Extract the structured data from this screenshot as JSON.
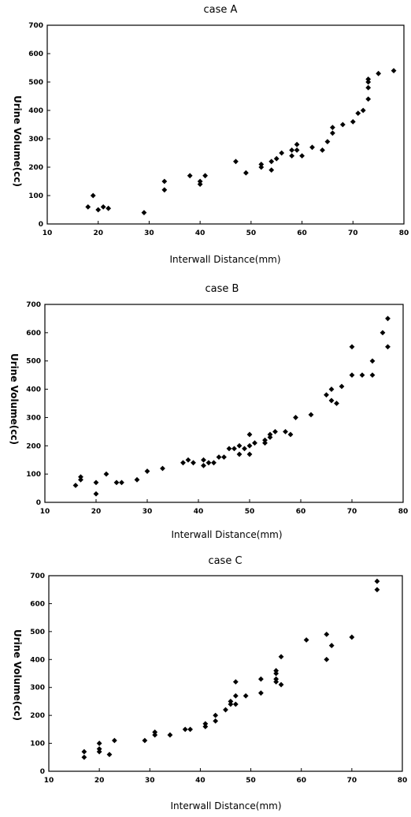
{
  "chart_data": [
    {
      "type": "scatter",
      "title": "case A",
      "xlabel": "Interwall Distance(mm)",
      "ylabel": "Urine Volume(cc)",
      "xlim": [
        10,
        80
      ],
      "ylim": [
        0,
        700
      ],
      "xticks": [
        "10",
        "20",
        "30",
        "40",
        "50",
        "60",
        "70",
        "80"
      ],
      "yticks": [
        "0",
        "100",
        "200",
        "300",
        "400",
        "500",
        "600",
        "700"
      ],
      "grid": false,
      "x": [
        18,
        19,
        20,
        21,
        22,
        29,
        33,
        33,
        38,
        40,
        40,
        41,
        47,
        49,
        52,
        52,
        54,
        54,
        55,
        56,
        58,
        58,
        59,
        59,
        60,
        62,
        64,
        65,
        66,
        66,
        68,
        70,
        71,
        72,
        73,
        73,
        73,
        73,
        75,
        78
      ],
      "y": [
        60,
        100,
        50,
        60,
        55,
        40,
        150,
        120,
        170,
        150,
        140,
        170,
        220,
        180,
        210,
        200,
        220,
        190,
        230,
        250,
        240,
        260,
        280,
        260,
        240,
        270,
        260,
        290,
        320,
        340,
        350,
        360,
        390,
        400,
        440,
        480,
        500,
        510,
        530,
        540
      ]
    },
    {
      "type": "scatter",
      "title": "case B",
      "xlabel": "Interwall Distance(mm)",
      "ylabel": "Urine Volume(cc)",
      "xlim": [
        10,
        80
      ],
      "ylim": [
        0,
        700
      ],
      "xticks": [
        "10",
        "20",
        "30",
        "40",
        "50",
        "60",
        "70",
        "80"
      ],
      "yticks": [
        "0",
        "100",
        "200",
        "300",
        "400",
        "500",
        "600",
        "700"
      ],
      "grid": false,
      "x": [
        16,
        17,
        17,
        20,
        20,
        22,
        24,
        25,
        28,
        30,
        33,
        37,
        38,
        39,
        41,
        41,
        42,
        43,
        44,
        45,
        46,
        47,
        48,
        48,
        49,
        50,
        50,
        50,
        51,
        53,
        53,
        54,
        54,
        55,
        57,
        58,
        59,
        62,
        65,
        66,
        66,
        67,
        68,
        70,
        70,
        72,
        74,
        74,
        76,
        77,
        77
      ],
      "y": [
        60,
        90,
        80,
        70,
        30,
        100,
        70,
        70,
        80,
        110,
        120,
        140,
        150,
        140,
        150,
        130,
        140,
        140,
        160,
        160,
        190,
        190,
        200,
        170,
        190,
        240,
        200,
        170,
        210,
        220,
        210,
        240,
        230,
        250,
        250,
        240,
        300,
        310,
        380,
        400,
        360,
        350,
        410,
        550,
        450,
        450,
        450,
        500,
        600,
        650,
        550
      ]
    },
    {
      "type": "scatter",
      "title": "case C",
      "xlabel": "Interwall Distance(mm)",
      "ylabel": "Urine Volume(cc)",
      "xlim": [
        10,
        80
      ],
      "ylim": [
        0,
        700
      ],
      "xticks": [
        "10",
        "20",
        "30",
        "40",
        "50",
        "60",
        "70",
        "80"
      ],
      "yticks": [
        "0",
        "100",
        "200",
        "300",
        "400",
        "500",
        "600",
        "700"
      ],
      "grid": false,
      "x": [
        17,
        17,
        20,
        20,
        20,
        22,
        23,
        29,
        31,
        31,
        34,
        37,
        38,
        41,
        41,
        43,
        43,
        45,
        46,
        46,
        47,
        47,
        47,
        49,
        52,
        52,
        55,
        55,
        55,
        55,
        56,
        56,
        61,
        65,
        65,
        66,
        70,
        75,
        75
      ],
      "y": [
        70,
        50,
        100,
        80,
        70,
        60,
        110,
        110,
        140,
        130,
        130,
        150,
        150,
        170,
        160,
        200,
        180,
        220,
        240,
        250,
        320,
        270,
        240,
        270,
        330,
        280,
        360,
        350,
        330,
        320,
        410,
        310,
        470,
        490,
        400,
        450,
        480,
        680,
        650
      ]
    }
  ]
}
